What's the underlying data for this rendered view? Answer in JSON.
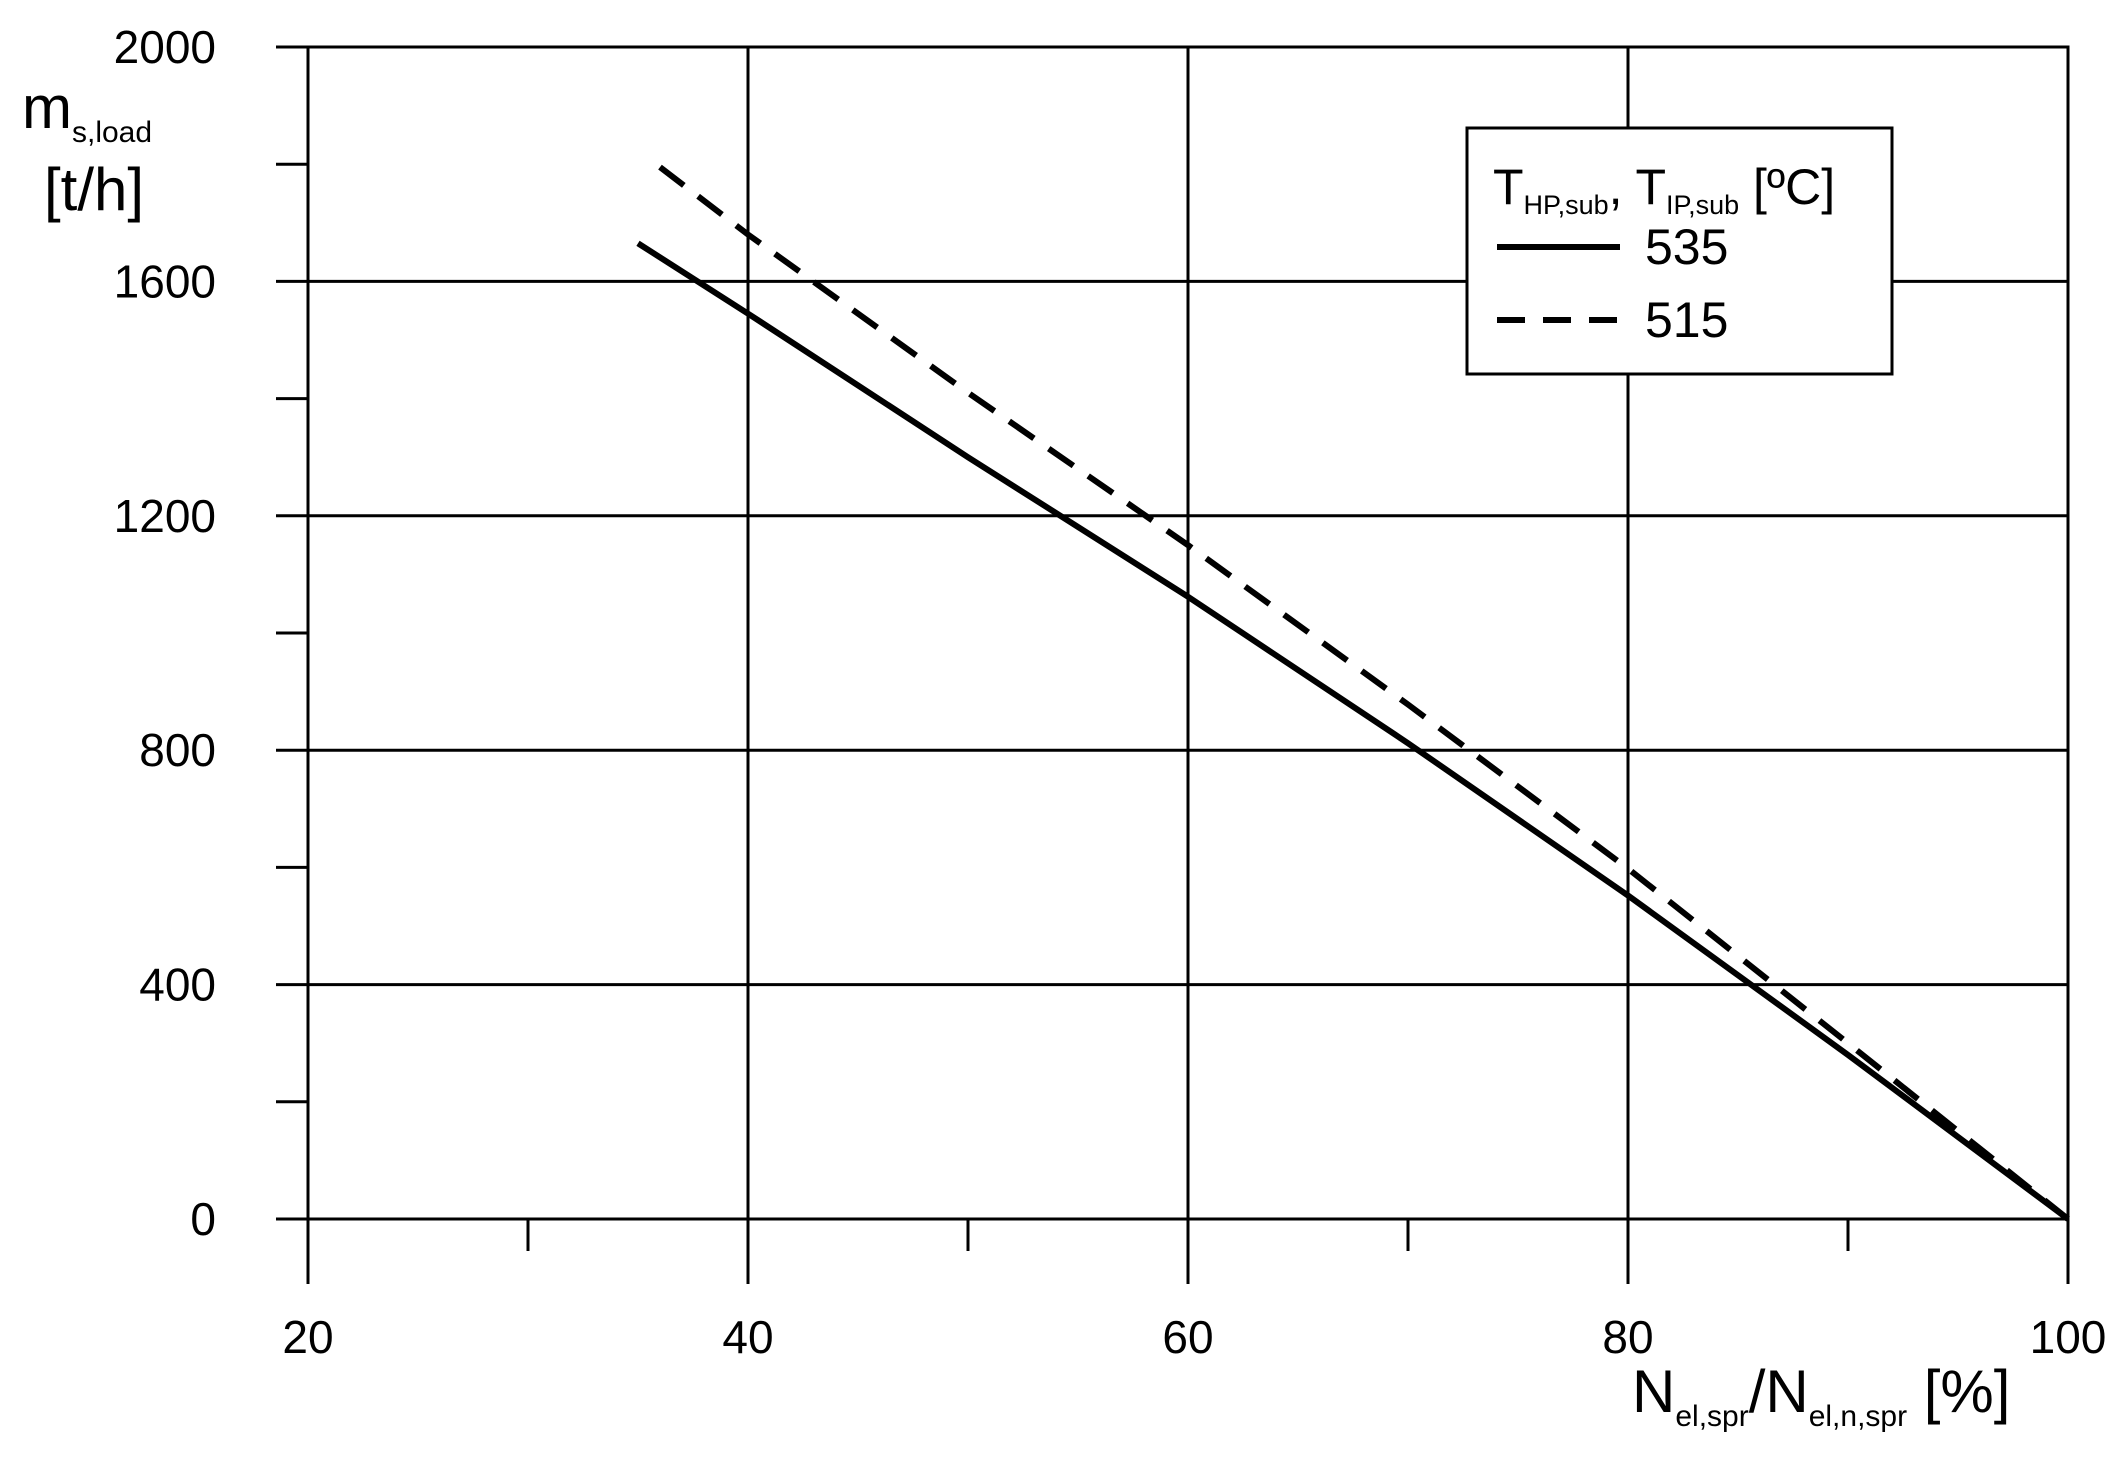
{
  "chart_data": {
    "type": "line",
    "xlabel": {
      "main": "N",
      "sub": "el,spr",
      "sep": "/N",
      "sub2": "el,n,spr",
      "unit": " [%]"
    },
    "ylabel": {
      "main": "m",
      "sub": "s,load",
      "unit": "[t/h]"
    },
    "xlim": [
      20,
      100
    ],
    "ylim": [
      0,
      2000
    ],
    "x_ticks": [
      20,
      40,
      60,
      80,
      100
    ],
    "x_minor_ticks": [
      30,
      50,
      70,
      90
    ],
    "y_ticks": [
      0,
      400,
      800,
      1200,
      1600,
      2000
    ],
    "y_minor_ticks": [
      200,
      600,
      1000,
      1400,
      1800
    ],
    "grid": true,
    "legend": {
      "position": "top-right",
      "title": {
        "t1": "T",
        "s1": "HP,sub",
        "sep": ", ",
        "t2": "T",
        "s2": "IP,sub",
        "unit": " [ºC]"
      }
    },
    "series": [
      {
        "name": "535",
        "style": "solid",
        "color": "#000000",
        "x": [
          35,
          40,
          50,
          60,
          70,
          80,
          90,
          100
        ],
        "y": [
          1665,
          1545,
          1300,
          1062,
          812,
          552,
          280,
          0
        ]
      },
      {
        "name": "515",
        "style": "dashed",
        "color": "#000000",
        "x": [
          36,
          40,
          50,
          60,
          70,
          80,
          90,
          100
        ],
        "y": [
          1795,
          1680,
          1410,
          1150,
          878,
          598,
          300,
          0
        ]
      }
    ]
  }
}
